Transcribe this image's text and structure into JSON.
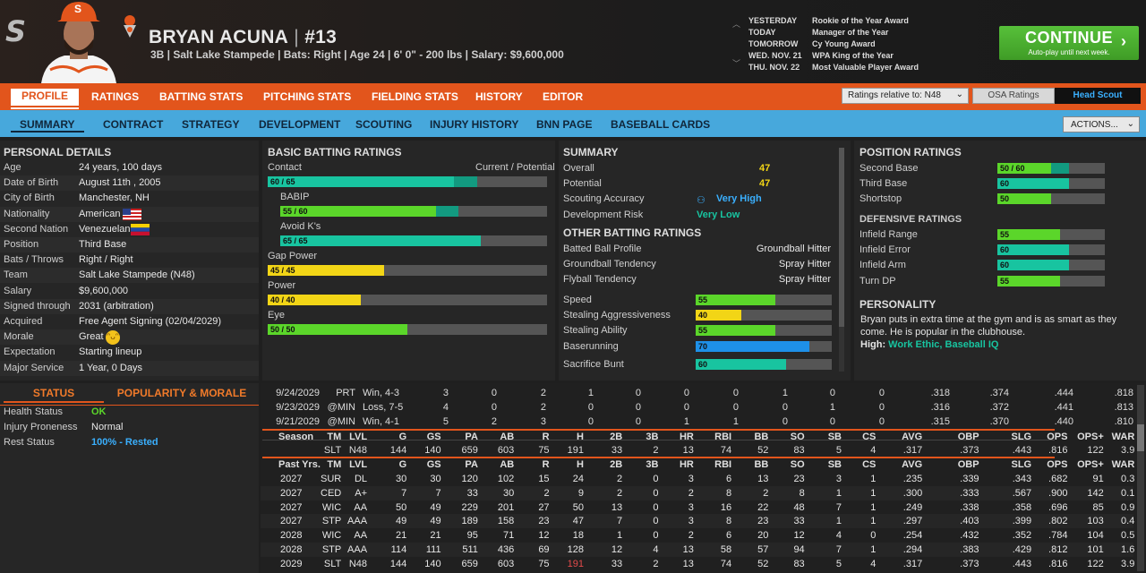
{
  "header": {
    "name": "BRYAN ACUNA",
    "number": "#13",
    "subtitle": "3B | Salt Lake Stampede | Bats: Right | Age 24 | 6' 0\" - 200 lbs | Salary: $9,600,000",
    "logo": "S",
    "cap_letter": "S"
  },
  "events": [
    {
      "day": "YESTERDAY",
      "text": "Rookie of the Year Award"
    },
    {
      "day": "TODAY",
      "text": "Manager of the Year"
    },
    {
      "day": "TOMORROW",
      "text": "Cy Young Award"
    },
    {
      "day": "WED. NOV. 21",
      "text": "WPA King of the Year"
    },
    {
      "day": "THU. NOV. 22",
      "text": "Most Valuable Player Award"
    }
  ],
  "continue": {
    "label": "CONTINUE",
    "sub": "Auto-play until next week."
  },
  "nav1": [
    "PROFILE",
    "RATINGS",
    "BATTING STATS",
    "PITCHING STATS",
    "FIELDING STATS",
    "HISTORY",
    "EDITOR"
  ],
  "ratings_dropdown": "Ratings relative to: N48",
  "osa": "OSA Ratings",
  "head_scout": "Head Scout",
  "nav2": [
    "SUMMARY",
    "CONTRACT",
    "STRATEGY",
    "DEVELOPMENT",
    "SCOUTING",
    "INJURY HISTORY",
    "BNN PAGE",
    "BASEBALL CARDS"
  ],
  "actions": "ACTIONS...",
  "personal": {
    "title": "PERSONAL DETAILS",
    "rows": [
      [
        "Age",
        "24 years, 100 days"
      ],
      [
        "Date of Birth",
        "August 11th , 2005"
      ],
      [
        "City of Birth",
        "Manchester, NH"
      ],
      [
        "Nationality",
        "American"
      ],
      [
        "Second Nation",
        "Venezuelan"
      ],
      [
        "Position",
        "Third Base"
      ],
      [
        "Bats / Throws",
        "Right / Right"
      ],
      [
        "Team",
        "Salt Lake Stampede (N48)"
      ],
      [
        "Salary",
        "$9,600,000"
      ],
      [
        "Signed through",
        "2031 (arbitration)"
      ],
      [
        "Acquired",
        "Free Agent Signing (02/04/2029)"
      ],
      [
        "Morale",
        "Great"
      ],
      [
        "Expectation",
        "Starting lineup"
      ],
      [
        "Major Service",
        "1 Year, 0 Days"
      ]
    ]
  },
  "status": {
    "tab1": "STATUS",
    "tab2": "POPULARITY & MORALE",
    "rows": [
      [
        "Health Status",
        "OK"
      ],
      [
        "Injury Proneness",
        "Normal"
      ],
      [
        "Rest Status",
        "100% - Rested"
      ]
    ]
  },
  "batting": {
    "title": "BASIC BATTING RATINGS",
    "cp": "Current / Potential",
    "rows": [
      {
        "label": "Contact",
        "text": "60 / 65",
        "cur": 60,
        "pot": 65,
        "color": "#18c4a0"
      },
      {
        "label": "BABIP",
        "text": "55 / 60",
        "cur": 55,
        "pot": 60,
        "color": "#5bd62a"
      },
      {
        "label": "Avoid K's",
        "text": "65 / 65",
        "cur": 65,
        "pot": 65,
        "color": "#18c4a0"
      },
      {
        "label": "Gap Power",
        "text": "45 / 45",
        "cur": 45,
        "pot": 45,
        "color": "#f2d516"
      },
      {
        "label": "Power",
        "text": "40 / 40",
        "cur": 40,
        "pot": 40,
        "color": "#f2d516"
      },
      {
        "label": "Eye",
        "text": "50 / 50",
        "cur": 50,
        "pot": 50,
        "color": "#5bd62a"
      }
    ]
  },
  "summary": {
    "title": "SUMMARY",
    "rows": [
      [
        "Overall",
        "47"
      ],
      [
        "Potential",
        "47"
      ],
      [
        "Scouting Accuracy",
        "Very High"
      ],
      [
        "Development Risk",
        "Very Low"
      ]
    ],
    "other_title": "OTHER BATTING RATINGS",
    "other": [
      [
        "Batted Ball Profile",
        "Groundball Hitter"
      ],
      [
        "Groundball Tendency",
        "Spray Hitter"
      ],
      [
        "Flyball Tendency",
        "Spray Hitter"
      ]
    ],
    "bars": [
      {
        "label": "Speed",
        "v": 55,
        "color": "#5bd62a"
      },
      {
        "label": "Stealing Aggressiveness",
        "v": 40,
        "color": "#f2d516"
      },
      {
        "label": "Stealing Ability",
        "v": 55,
        "color": "#5bd62a"
      },
      {
        "label": "Baserunning",
        "v": 70,
        "color": "#1e90e8"
      },
      {
        "label": "Sacrifice Bunt",
        "v": 60,
        "color": "#18c4a0"
      }
    ]
  },
  "position": {
    "title": "POSITION RATINGS",
    "rows": [
      {
        "label": "Second Base",
        "text": "50 / 60",
        "cur": 50,
        "pot": 60,
        "color": "#5bd62a"
      },
      {
        "label": "Third Base",
        "text": "60",
        "cur": 60,
        "pot": 60,
        "color": "#18c4a0"
      },
      {
        "label": "Shortstop",
        "text": "50",
        "cur": 50,
        "pot": 50,
        "color": "#5bd62a"
      }
    ],
    "def_title": "DEFENSIVE RATINGS",
    "def": [
      {
        "label": "Infield Range",
        "text": "55",
        "cur": 55,
        "color": "#5bd62a"
      },
      {
        "label": "Infield Error",
        "text": "60",
        "cur": 60,
        "color": "#18c4a0"
      },
      {
        "label": "Infield Arm",
        "text": "60",
        "cur": 60,
        "color": "#18c4a0"
      },
      {
        "label": "Turn DP",
        "text": "55",
        "cur": 55,
        "color": "#5bd62a"
      }
    ]
  },
  "personality": {
    "title": "PERSONALITY",
    "text": "Bryan puts in extra time at the gym and is as smart as they come. He is popular in the clubhouse.",
    "high_label": "High:",
    "high": "Work Ethic, Baseball IQ"
  },
  "stats": {
    "games": [
      [
        "9/24/2029",
        "PRT",
        "Win, 4-3",
        "3",
        "0",
        "2",
        "1",
        "0",
        "0",
        "0",
        "1",
        "0",
        "0",
        ".318",
        ".374",
        ".444",
        ".818"
      ],
      [
        "9/23/2029",
        "@MIN",
        "Loss, 7-5",
        "4",
        "0",
        "2",
        "0",
        "0",
        "0",
        "0",
        "0",
        "1",
        "0",
        ".316",
        ".372",
        ".441",
        ".813"
      ],
      [
        "9/21/2029",
        "@MIN",
        "Win, 4-1",
        "5",
        "2",
        "3",
        "0",
        "0",
        "1",
        "1",
        "0",
        "0",
        "0",
        ".315",
        ".370",
        ".440",
        ".810"
      ]
    ],
    "season_header": [
      "Season",
      "TM",
      "LVL",
      "G",
      "GS",
      "PA",
      "AB",
      "R",
      "H",
      "2B",
      "3B",
      "HR",
      "RBI",
      "BB",
      "SO",
      "SB",
      "CS",
      "AVG",
      "OBP",
      "SLG",
      "OPS",
      "OPS+",
      "WAR"
    ],
    "season": [
      [
        "",
        "SLT",
        "N48",
        "144",
        "140",
        "659",
        "603",
        "75",
        "191",
        "33",
        "2",
        "13",
        "74",
        "52",
        "83",
        "5",
        "4",
        ".317",
        ".373",
        ".443",
        ".816",
        "122",
        "3.9"
      ]
    ],
    "past_header": [
      "Past Yrs.",
      "TM",
      "LVL",
      "G",
      "GS",
      "PA",
      "AB",
      "R",
      "H",
      "2B",
      "3B",
      "HR",
      "RBI",
      "BB",
      "SO",
      "SB",
      "CS",
      "AVG",
      "OBP",
      "SLG",
      "OPS",
      "OPS+",
      "WAR"
    ],
    "past": [
      [
        "2027",
        "SUR",
        "DL",
        "30",
        "30",
        "120",
        "102",
        "15",
        "24",
        "2",
        "0",
        "3",
        "6",
        "13",
        "23",
        "3",
        "1",
        ".235",
        ".339",
        ".343",
        ".682",
        "91",
        "0.3"
      ],
      [
        "2027",
        "CED",
        "A+",
        "7",
        "7",
        "33",
        "30",
        "2",
        "9",
        "2",
        "0",
        "2",
        "8",
        "2",
        "8",
        "1",
        "1",
        ".300",
        ".333",
        ".567",
        ".900",
        "142",
        "0.1"
      ],
      [
        "2027",
        "WIC",
        "AA",
        "50",
        "49",
        "229",
        "201",
        "27",
        "50",
        "13",
        "0",
        "3",
        "16",
        "22",
        "48",
        "7",
        "1",
        ".249",
        ".338",
        ".358",
        ".696",
        "85",
        "0.9"
      ],
      [
        "2027",
        "STP",
        "AAA",
        "49",
        "49",
        "189",
        "158",
        "23",
        "47",
        "7",
        "0",
        "3",
        "8",
        "23",
        "33",
        "1",
        "1",
        ".297",
        ".403",
        ".399",
        ".802",
        "103",
        "0.4"
      ],
      [
        "2028",
        "WIC",
        "AA",
        "21",
        "21",
        "95",
        "71",
        "12",
        "18",
        "1",
        "0",
        "2",
        "6",
        "20",
        "12",
        "4",
        "0",
        ".254",
        ".432",
        ".352",
        ".784",
        "104",
        "0.5"
      ],
      [
        "2028",
        "STP",
        "AAA",
        "114",
        "111",
        "511",
        "436",
        "69",
        "128",
        "12",
        "4",
        "13",
        "58",
        "57",
        "94",
        "7",
        "1",
        ".294",
        ".383",
        ".429",
        ".812",
        "101",
        "1.6"
      ],
      [
        "2029",
        "SLT",
        "N48",
        "144",
        "140",
        "659",
        "603",
        "75",
        "191",
        "33",
        "2",
        "13",
        "74",
        "52",
        "83",
        "5",
        "4",
        ".317",
        ".373",
        ".443",
        ".816",
        "122",
        "3.9"
      ]
    ]
  }
}
